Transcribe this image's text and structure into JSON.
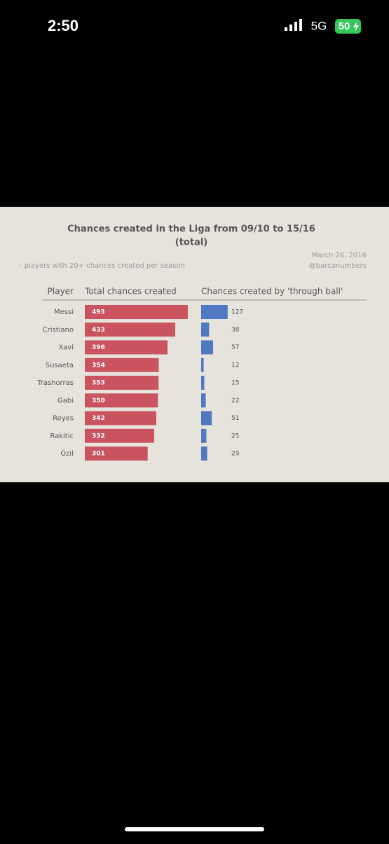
{
  "status_bar": {
    "time": "2:50",
    "network": "5G",
    "battery": "50"
  },
  "chart_data": {
    "type": "bar",
    "title": "Chances created in the Liga from 09/10 to 15/16",
    "title_note": "(total)",
    "note": "- players with 20+ chances created per season",
    "date": "March 26, 2016",
    "source": "@barcanumbers",
    "category_header": "Player",
    "categories": [
      "Messi",
      "Cristiano",
      "Xavi",
      "Susaeta",
      "Trashorras",
      "Gabi",
      "Reyes",
      "Rakitic",
      "Özil"
    ],
    "series": [
      {
        "name": "Total chances created",
        "color": "#c9545f",
        "values": [
          493,
          433,
          396,
          354,
          353,
          350,
          342,
          332,
          301
        ]
      },
      {
        "name": "Chances created by 'through ball'",
        "color": "#5079c2",
        "values": [
          127,
          38,
          57,
          12,
          15,
          22,
          51,
          25,
          29
        ]
      }
    ]
  }
}
